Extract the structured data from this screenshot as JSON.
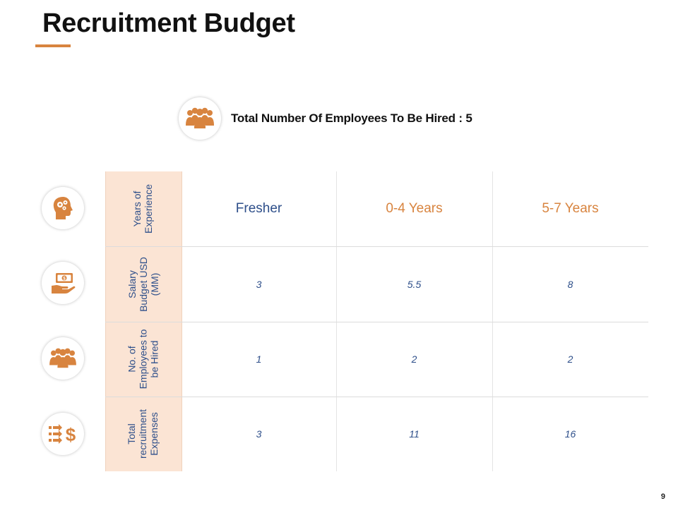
{
  "title": "Recruitment Budget",
  "summary": {
    "text": "Total Number Of Employees To Be Hired : 5",
    "icon": "people-group-icon"
  },
  "table": {
    "row_headers": [
      "Years of Experience",
      "Salary Budget USD (MM)",
      "No. of Employees to be Hired",
      "Total recruitment Expenses"
    ],
    "row_header_lines": [
      [
        "Years of",
        "Experience"
      ],
      [
        "Salary",
        "Budget USD",
        "(MM)"
      ],
      [
        "No. of",
        "Employees to",
        "be Hired"
      ],
      [
        "Total",
        "recruitment",
        "Expenses"
      ]
    ],
    "row_icons": [
      "head-gears-icon",
      "money-hand-icon",
      "people-group-icon",
      "arrows-dollar-icon"
    ],
    "experience_levels": [
      "Fresher",
      "0-4 Years",
      "5-7 Years"
    ],
    "rows": [
      [
        "3",
        "5.5",
        "8"
      ],
      [
        "1",
        "2",
        "2"
      ],
      [
        "3",
        "11",
        "16"
      ]
    ]
  },
  "page_number": "9",
  "colors": {
    "accent": "#d8843f",
    "header_fill": "#fbe4d4",
    "text_blue": "#2e4f8a"
  }
}
